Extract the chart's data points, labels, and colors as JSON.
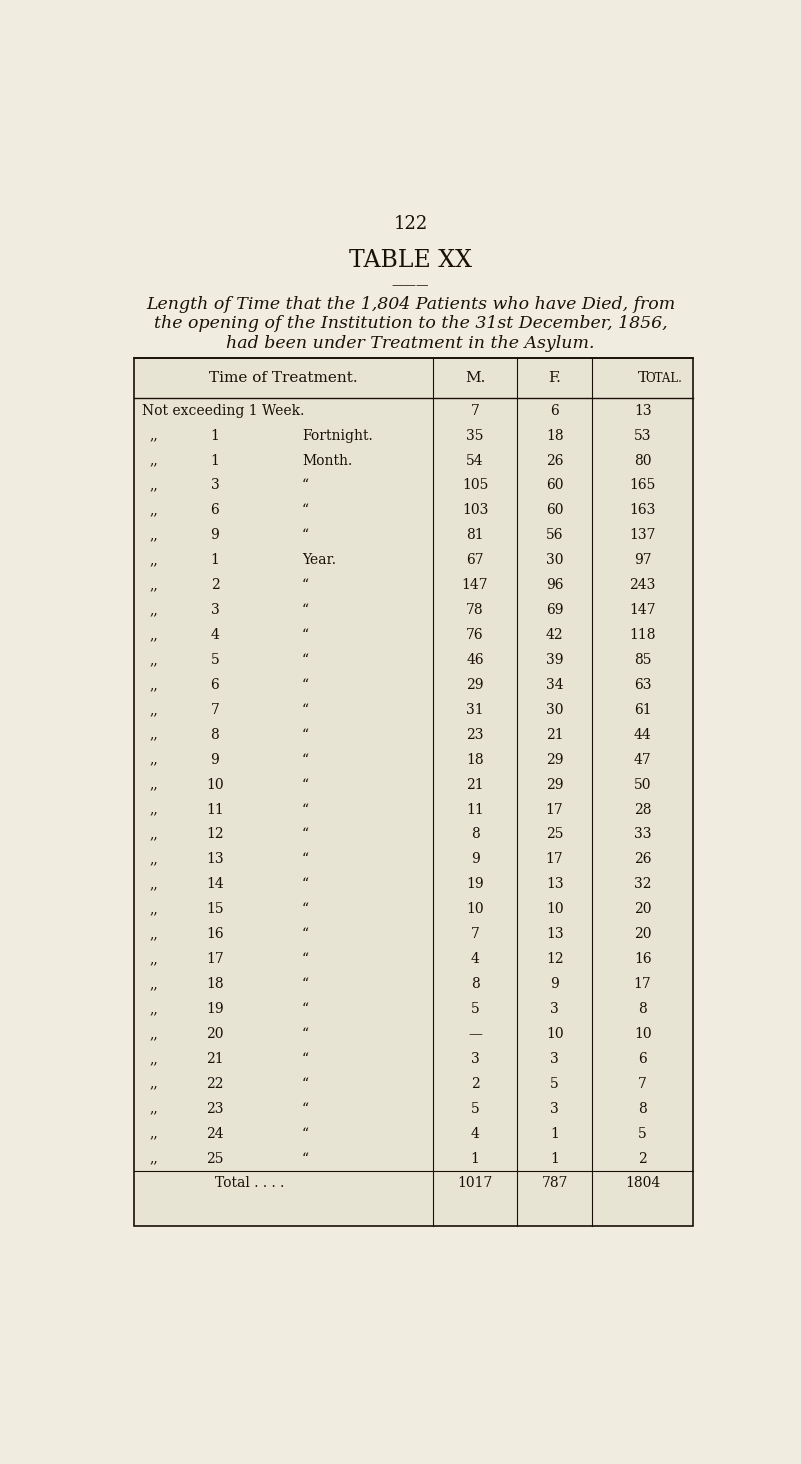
{
  "page_number": "122",
  "title": "TABLE XX",
  "subtitle_line1": "Length of Time that the 1,804 Patients who have Died, from",
  "subtitle_line2": "the opening of the Institution to the 31st December, 1856,",
  "subtitle_line3": "had been under Treatment in the Asylum.",
  "col_headers": [
    "Time of Treatment.",
    "M.",
    "F.",
    "Total."
  ],
  "rows": [
    [
      "Not exceeding 1 Week.",
      "7",
      "6",
      "13"
    ],
    [
      "“    1 Fortnight.",
      "35",
      "18",
      "53"
    ],
    [
      "“    1 Month.",
      "54",
      "26",
      "80"
    ],
    [
      "“    3   “",
      "105",
      "60",
      "165"
    ],
    [
      "“    6   “",
      "103",
      "60",
      "163"
    ],
    [
      "“    9   “",
      "81",
      "56",
      "137"
    ],
    [
      "“    1 Year.",
      "67",
      "30",
      "97"
    ],
    [
      "“    2   “",
      "147",
      "96",
      "243"
    ],
    [
      "“    3   “",
      "78",
      "69",
      "147"
    ],
    [
      "“    4   “",
      "76",
      "42",
      "118"
    ],
    [
      "“    5   “",
      "46",
      "39",
      "85"
    ],
    [
      "“    6   “",
      "29",
      "34",
      "63"
    ],
    [
      "“    7   “",
      "31",
      "30",
      "61"
    ],
    [
      "“    8   “",
      "23",
      "21",
      "44"
    ],
    [
      "“    9   “",
      "18",
      "29",
      "47"
    ],
    [
      "“    10  “",
      "21",
      "29",
      "50"
    ],
    [
      "“    11  “",
      "11",
      "17",
      "28"
    ],
    [
      "“    12  “",
      "8",
      "25",
      "33"
    ],
    [
      "“    13  “",
      "9",
      "17",
      "26"
    ],
    [
      "“    14  “",
      "19",
      "13",
      "32"
    ],
    [
      "“    15  “",
      "10",
      "10",
      "20"
    ],
    [
      "“    16  “",
      "7",
      "13",
      "20"
    ],
    [
      "“    17  “",
      "4",
      "12",
      "16"
    ],
    [
      "“    18  “",
      "8",
      "9",
      "17"
    ],
    [
      "“    19  “",
      "5",
      "3",
      "8"
    ],
    [
      "“    20  “",
      "—",
      "10",
      "10"
    ],
    [
      "“    21  “",
      "3",
      "3",
      "6"
    ],
    [
      "“    22  “",
      "2",
      "5",
      "7"
    ],
    [
      "“    23  “",
      "5",
      "3",
      "8"
    ],
    [
      "“    24  “",
      "4",
      "1",
      "5"
    ],
    [
      "“    25  “",
      "1",
      "1",
      "2"
    ]
  ],
  "total_row": [
    "Total . . . .",
    "1017",
    "787",
    "1804"
  ],
  "bg_color": "#f0ece0",
  "text_color": "#1a1008",
  "table_bg": "#e8e4d4"
}
